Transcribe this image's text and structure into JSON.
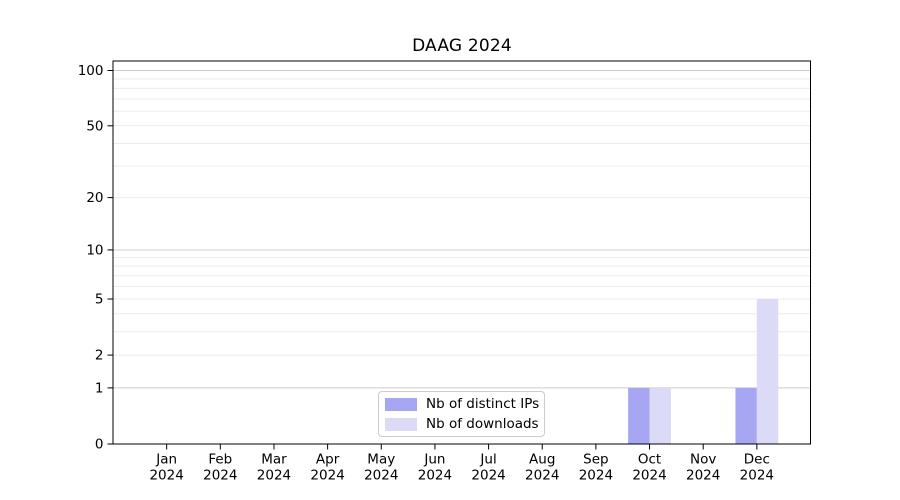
{
  "chart_data": {
    "type": "bar",
    "title": "DAAG 2024",
    "x_categories_months": [
      "Jan",
      "Feb",
      "Mar",
      "Apr",
      "May",
      "Jun",
      "Jul",
      "Aug",
      "Sep",
      "Oct",
      "Nov",
      "Dec"
    ],
    "x_year_label": "2024",
    "series": [
      {
        "name": "Nb of distinct IPs",
        "color": "#a6a6f2",
        "values": [
          0,
          0,
          0,
          0,
          0,
          0,
          0,
          0,
          0,
          1,
          0,
          1
        ]
      },
      {
        "name": "Nb of downloads",
        "color": "#dbdbf8",
        "values": [
          0,
          0,
          0,
          0,
          0,
          0,
          0,
          0,
          0,
          1,
          0,
          5
        ]
      }
    ],
    "yscale": "symlog",
    "ylim": [
      0,
      113
    ],
    "y_tick_values": [
      0,
      1,
      2,
      5,
      10,
      20,
      50,
      100
    ],
    "y_major_grid_values": [
      1,
      10,
      100
    ],
    "y_minor_grid_values": [
      2,
      3,
      4,
      5,
      6,
      7,
      8,
      9,
      20,
      30,
      40,
      50,
      60,
      70,
      80,
      90
    ],
    "grid": true,
    "legend_position": "lower-center"
  },
  "colors": {
    "background": "#ffffff",
    "grid_major": "#cccccc",
    "grid_minor": "#ebebeb",
    "axis": "#000000",
    "text": "#000000",
    "legend_border": "#cccccc"
  }
}
